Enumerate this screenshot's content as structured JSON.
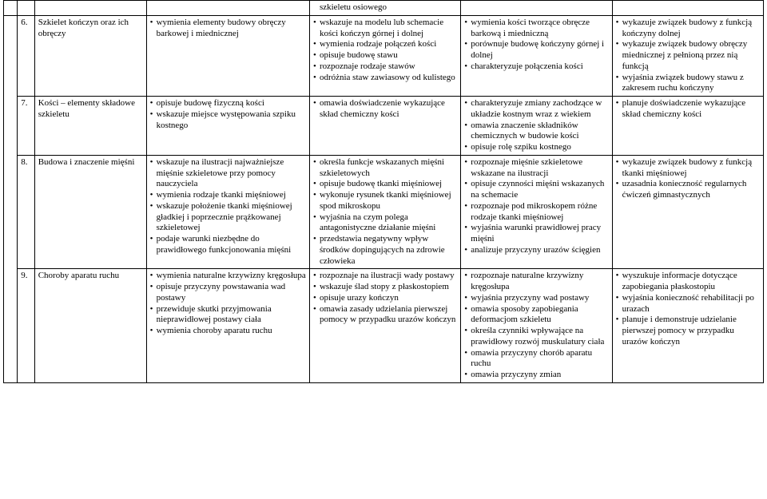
{
  "topRow": {
    "col4": "szkieletu osiowego"
  },
  "rows": [
    {
      "num": "6.",
      "title": "Szkielet kończyn oraz ich obręczy",
      "c3": [
        "wymienia elementy budowy obręczy barkowej i miednicznej"
      ],
      "c4": [
        "wskazuje na modelu lub schemacie kości kończyn górnej i dolnej",
        "wymienia rodzaje połączeń kości",
        "opisuje budowę stawu",
        "rozpoznaje rodzaje stawów",
        "odróżnia staw zawiasowy od kulistego"
      ],
      "c5": [
        "wymienia kości tworzące obręcze barkową i miedniczną",
        "porównuje budowę kończyny górnej i dolnej",
        "charakteryzuje połączenia kości"
      ],
      "c6": [
        "wykazuje związek budowy z funkcją kończyny dolnej",
        "wykazuje związek budowy obręczy miednicznej z pełnioną przez nią funkcją",
        "wyjaśnia związek budowy stawu z zakresem ruchu kończyny"
      ]
    },
    {
      "num": "7.",
      "title": "Kości – elementy składowe szkieletu",
      "c3": [
        "opisuje budowę fizyczną kości",
        "wskazuje miejsce występowania szpiku kostnego"
      ],
      "c4": [
        "omawia doświadczenie wykazujące skład chemiczny kości"
      ],
      "c5": [
        "charakteryzuje zmiany zachodzące w układzie kostnym wraz z wiekiem",
        "omawia znaczenie składników chemicznych w budowie kości",
        "opisuje rolę szpiku kostnego"
      ],
      "c6": [
        "planuje doświadczenie wykazujące skład chemiczny kości"
      ]
    },
    {
      "num": "8.",
      "title": "Budowa i znaczenie mięśni",
      "c3": [
        "wskazuje na ilustracji najważniejsze mięśnie szkieletowe przy pomocy nauczyciela",
        "wymienia rodzaje tkanki mięśniowej",
        "wskazuje położenie tkanki mięśniowej gładkiej i poprzecznie prążkowanej szkieletowej",
        "podaje warunki niezbędne do prawidłowego funkcjonowania mięśni"
      ],
      "c4": [
        "określa funkcje wskazanych mięśni szkieletowych",
        "opisuje budowę tkanki mięśniowej",
        "wykonuje rysunek tkanki mięśniowej spod mikroskopu",
        "wyjaśnia na czym polega antagonistyczne działanie mięśni",
        "przedstawia negatywny wpływ środków dopingujących na zdrowie człowieka"
      ],
      "c5": [
        "rozpoznaje mięśnie szkieletowe wskazane na ilustracji",
        "opisuje czynności mięśni wskazanych na schemacie",
        "rozpoznaje pod mikroskopem różne rodzaje tkanki mięśniowej",
        "wyjaśnia warunki prawidłowej pracy mięśni",
        "analizuje przyczyny urazów ścięgien"
      ],
      "c6": [
        "wykazuje związek budowy z funkcją tkanki mięśniowej",
        "uzasadnia konieczność regularnych ćwiczeń gimnastycznych"
      ]
    },
    {
      "num": "9.",
      "title": "Choroby aparatu ruchu",
      "c3": [
        "wymienia naturalne krzywizny kręgosłupa",
        "opisuje przyczyny powstawania wad postawy",
        "przewiduje skutki przyjmowania nieprawidłowej postawy ciała",
        "wymienia choroby aparatu ruchu"
      ],
      "c4": [
        "rozpoznaje na ilustracji wady postawy",
        "wskazuje ślad stopy z płaskostopiem",
        "opisuje urazy kończyn",
        "omawia zasady udzielania pierwszej pomocy w przypadku urazów kończyn"
      ],
      "c5": [
        "rozpoznaje naturalne krzywizny kręgosłupa",
        "wyjaśnia przyczyny wad postawy",
        "omawia sposoby zapobiegania deformacjom szkieletu",
        "określa czynniki wpływające na prawidłowy rozwój muskulatury ciała",
        "omawia przyczyny chorób aparatu ruchu",
        "omawia przyczyny zmian"
      ],
      "c6": [
        "wyszukuje informacje dotyczące zapobiegania płaskostopiu",
        "wyjaśnia konieczność rehabilitacji po urazach",
        "planuje i demonstruje udzielanie pierwszej pomocy w przypadku urazów kończyn"
      ]
    }
  ]
}
